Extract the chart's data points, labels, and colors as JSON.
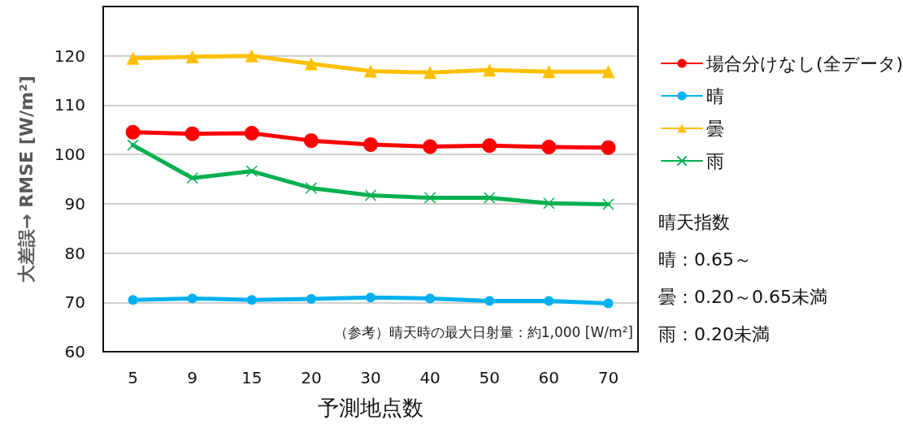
{
  "chart_data": {
    "type": "line",
    "xlabel": "予測地点数",
    "ylabel": "大差誤→ RMSE [W/m²]",
    "categories": [
      "5",
      "9",
      "15",
      "20",
      "30",
      "40",
      "50",
      "60",
      "70"
    ],
    "series": [
      {
        "name": "場合分けなし(全データ)",
        "color": "#ff0000",
        "marker": "circle",
        "values": [
          104.5,
          104.2,
          104.3,
          102.8,
          102.0,
          101.6,
          101.8,
          101.5,
          101.4
        ]
      },
      {
        "name": "晴",
        "color": "#00b0f0",
        "marker": "circle",
        "values": [
          70.5,
          70.8,
          70.5,
          70.7,
          71.0,
          70.8,
          70.3,
          70.3,
          69.8
        ]
      },
      {
        "name": "曇",
        "color": "#ffc000",
        "marker": "triangle",
        "values": [
          119.5,
          119.8,
          120.0,
          118.4,
          116.9,
          116.6,
          117.1,
          116.8,
          116.8
        ]
      },
      {
        "name": "雨",
        "color": "#00b050",
        "marker": "cross",
        "values": [
          101.9,
          95.2,
          96.6,
          93.2,
          91.7,
          91.2,
          91.2,
          90.1,
          89.9
        ]
      }
    ],
    "ylim": [
      60,
      130
    ],
    "yticks": [
      60,
      70,
      80,
      90,
      100,
      110,
      120
    ],
    "grid": "y",
    "legend": "right",
    "annotations": [
      "（参考）晴天時の最大日射量：約1,000 [W/m²]",
      "晴天指数",
      "晴：0.65～",
      "曇：0.20～0.65未満",
      "雨：0.20未満"
    ]
  }
}
